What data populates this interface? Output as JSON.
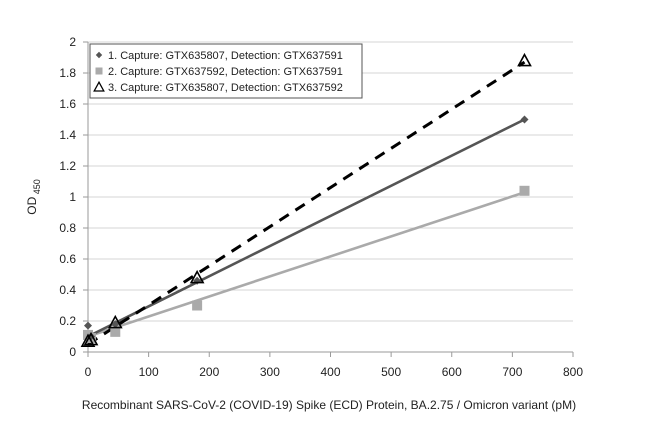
{
  "chart_data": {
    "type": "line",
    "xlabel": "Recombinant SARS-CoV-2  (COVID-19) Spike (ECD) Protein, BA.2.75 / Omicron variant (pM)",
    "ylabel_main": "OD",
    "ylabel_sub": "450",
    "xlim": [
      0,
      800
    ],
    "ylim": [
      0,
      2
    ],
    "xticks": [
      0,
      100,
      200,
      300,
      400,
      500,
      600,
      700,
      800
    ],
    "yticks": [
      0,
      0.2,
      0.4,
      0.6,
      0.8,
      1,
      1.2,
      1.4,
      1.6,
      1.8,
      2
    ],
    "grid": "horizontal",
    "legend_position": "top-left",
    "series": [
      {
        "name": "1. Capture: GTX635807, Detection: GTX637591",
        "marker": "diamond",
        "line": "solid",
        "color": "#555555",
        "x": [
          0,
          720
        ],
        "y": [
          0.1,
          1.5
        ],
        "points_x": [
          0,
          5,
          45,
          180,
          720
        ],
        "points_y": [
          0.17,
          0.1,
          0.18,
          0.46,
          1.5
        ]
      },
      {
        "name": "2. Capture: GTX637592, Detection: GTX637591",
        "marker": "square",
        "line": "solid",
        "color": "#aaaaaa",
        "x": [
          0,
          720
        ],
        "y": [
          0.1,
          1.03
        ],
        "points_x": [
          0,
          5,
          45,
          180,
          720
        ],
        "points_y": [
          0.11,
          0.09,
          0.13,
          0.3,
          1.04
        ]
      },
      {
        "name": "3. Capture: GTX635807, Detection: GTX637592",
        "marker": "triangle",
        "line": "dashed",
        "color": "#000000",
        "x": [
          0,
          720
        ],
        "y": [
          0.05,
          1.87
        ],
        "points_x": [
          0,
          5,
          45,
          180,
          720
        ],
        "points_y": [
          0.07,
          0.08,
          0.19,
          0.48,
          1.88
        ]
      }
    ]
  }
}
